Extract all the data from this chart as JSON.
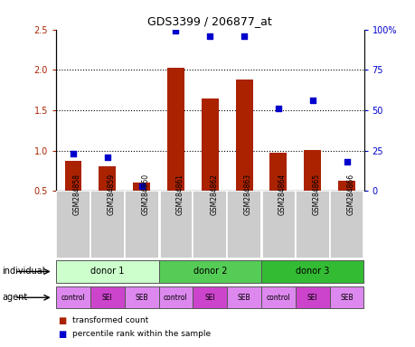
{
  "title": "GDS3399 / 206877_at",
  "samples": [
    "GSM284858",
    "GSM284859",
    "GSM284860",
    "GSM284861",
    "GSM284862",
    "GSM284863",
    "GSM284864",
    "GSM284865",
    "GSM284866"
  ],
  "bar_values": [
    0.87,
    0.81,
    0.6,
    2.02,
    1.64,
    1.88,
    0.97,
    1.01,
    0.62
  ],
  "scatter_values_pct": [
    23,
    21,
    3,
    99,
    96,
    96,
    51,
    56,
    18
  ],
  "bar_color": "#aa2200",
  "scatter_color": "#0000cc",
  "bar_bottom": 0.5,
  "ylim_left": [
    0.5,
    2.5
  ],
  "ylim_right": [
    0,
    100
  ],
  "yticks_left": [
    0.5,
    1.0,
    1.5,
    2.0,
    2.5
  ],
  "yticks_right": [
    0,
    25,
    50,
    75,
    100
  ],
  "yticklabels_right": [
    "0",
    "25",
    "50",
    "75",
    "100%"
  ],
  "dotted_lines": [
    1.0,
    1.5,
    2.0
  ],
  "individuals": [
    {
      "label": "donor 1",
      "start": 0,
      "end": 3,
      "color": "#ccffcc"
    },
    {
      "label": "donor 2",
      "start": 3,
      "end": 6,
      "color": "#55cc55"
    },
    {
      "label": "donor 3",
      "start": 6,
      "end": 9,
      "color": "#33bb33"
    }
  ],
  "agents": [
    {
      "label": "control",
      "color": "#dd88ee"
    },
    {
      "label": "SEI",
      "color": "#cc44cc"
    },
    {
      "label": "SEB",
      "color": "#dd88ee"
    },
    {
      "label": "control",
      "color": "#dd88ee"
    },
    {
      "label": "SEI",
      "color": "#cc44cc"
    },
    {
      "label": "SEB",
      "color": "#dd88ee"
    },
    {
      "label": "control",
      "color": "#dd88ee"
    },
    {
      "label": "SEI",
      "color": "#cc44cc"
    },
    {
      "label": "SEB",
      "color": "#dd88ee"
    }
  ],
  "legend_red": "transformed count",
  "legend_blue": "percentile rank within the sample",
  "individual_label": "individual",
  "agent_label": "agent"
}
